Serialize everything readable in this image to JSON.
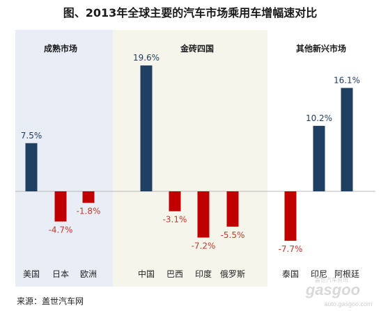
{
  "chart_data": {
    "type": "bar",
    "title": "图、2013年全球主要的汽车市场乘用车增幅速对比",
    "groups": [
      {
        "name": "成熟市场",
        "background": "#e8edf6",
        "categories": [
          "美国",
          "日本",
          "欧洲"
        ],
        "values": [
          7.5,
          -4.7,
          -1.8
        ],
        "value_labels": [
          "7.5%",
          "-4.7%",
          "-1.8%"
        ]
      },
      {
        "name": "金砖四国",
        "background": "#f6f5ec",
        "categories": [
          "中国",
          "巴西",
          "印度",
          "俄罗斯"
        ],
        "values": [
          19.6,
          -3.1,
          -7.2,
          -5.5
        ],
        "value_labels": [
          "19.6%",
          "-3.1%",
          "-7.2%",
          "-5.5%"
        ]
      },
      {
        "name": "其他新兴市场",
        "background": "#ffffff",
        "categories": [
          "泰国",
          "印尼",
          "阿根廷"
        ],
        "values": [
          -7.7,
          10.2,
          16.1
        ],
        "value_labels": [
          "-7.7%",
          "10.2%",
          "16.1%"
        ]
      }
    ],
    "ylim": [
      -10,
      22
    ],
    "grid": false,
    "colors": {
      "positive": "#1f3f63",
      "negative": "#c00000"
    }
  },
  "source": "来源：盖世汽车网",
  "watermark": {
    "brand": "gasgoo",
    "tagline": "盖世汽车资讯",
    "url": "auto.gasgoo.com"
  }
}
